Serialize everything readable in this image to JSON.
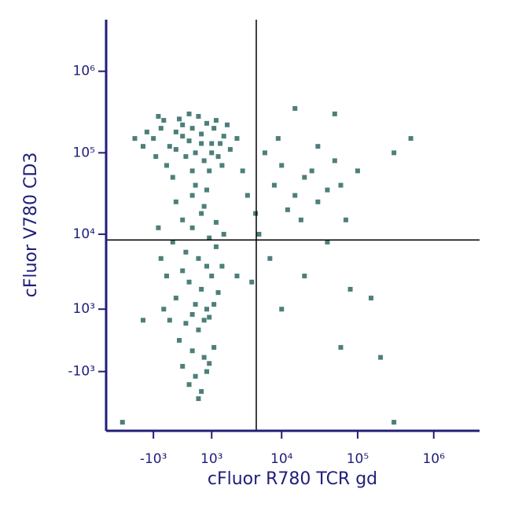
{
  "chart_data": {
    "type": "scatter",
    "xlabel": "cFluor R780 TCR gd",
    "ylabel": "cFluor V780 CD3",
    "xscale": "asinh",
    "xscale_width": 1000,
    "yscale": "asinh",
    "yscale_width": 1000,
    "xlim": [
      -5000,
      4000000
    ],
    "ylim": [
      -6400,
      4300000
    ],
    "xticks": [
      {
        "value": -1000,
        "label": "-10³"
      },
      {
        "value": 1000,
        "label": "10³"
      },
      {
        "value": 10000,
        "label": "10⁴"
      },
      {
        "value": 100000,
        "label": "10⁵"
      },
      {
        "value": 1000000,
        "label": "10⁶"
      }
    ],
    "yticks": [
      {
        "value": -1000,
        "label": "-10³"
      },
      {
        "value": 1000,
        "label": "10³"
      },
      {
        "value": 10000,
        "label": "10⁴"
      },
      {
        "value": 100000,
        "label": "10⁵"
      },
      {
        "value": 1000000,
        "label": "10⁶"
      }
    ],
    "gates": {
      "x": 4600,
      "y": 8500
    },
    "axis_color": "#1f1f7a",
    "series": [
      {
        "color": "#4d7f7a",
        "x": [
          -1000,
          -700,
          -400,
          -200,
          0,
          200,
          400,
          600,
          800,
          1000,
          1300,
          1600,
          2000,
          -900,
          -500,
          -100,
          300,
          700,
          1100,
          1500,
          2500,
          -600,
          100,
          500,
          900,
          1200,
          -300,
          400,
          800,
          1800,
          -1300,
          -1500,
          200,
          600,
          1000,
          0,
          -200,
          1400,
          300,
          -800,
          0,
          300,
          600,
          900,
          -300,
          100,
          500,
          800,
          1200,
          -500,
          200,
          600,
          1000,
          -200,
          400,
          800,
          1300,
          -400,
          100,
          500,
          900,
          -100,
          300,
          700,
          1100,
          0,
          400,
          800,
          200,
          600,
          500,
          -600,
          -700,
          1500,
          1600,
          -200,
          700,
          1200,
          300,
          -800,
          0,
          700,
          300,
          900,
          1100,
          8000,
          15000,
          20000,
          12000,
          30000,
          25000,
          40000,
          10000,
          50000,
          18000,
          60000,
          6000,
          9000,
          30000,
          5000,
          70000,
          100000,
          300000,
          40000,
          7000,
          20000,
          80000,
          150000,
          50000,
          15000,
          500000,
          4000,
          10000,
          60000,
          200000,
          300000,
          3000,
          3500,
          4500,
          2500,
          -2000,
          -3000,
          -1500
        ],
        "values": [
          150000,
          200000,
          120000,
          180000,
          220000,
          140000,
          100000,
          170000,
          230000,
          130000,
          90000,
          160000,
          110000,
          90000,
          70000,
          260000,
          60000,
          80000,
          200000,
          70000,
          150000,
          250000,
          90000,
          280000,
          60000,
          250000,
          50000,
          40000,
          35000,
          220000,
          180000,
          120000,
          300000,
          130000,
          100000,
          160000,
          110000,
          130000,
          200000,
          280000,
          15000,
          12000,
          18000,
          9000,
          8000,
          6000,
          5000,
          4000,
          7000,
          3000,
          2500,
          2000,
          3000,
          1500,
          1200,
          1000,
          1800,
          600,
          500,
          300,
          700,
          0,
          -300,
          -500,
          -200,
          -800,
          -1200,
          -1000,
          -1600,
          -2000,
          -2500,
          1000,
          5000,
          4000,
          10000,
          25000,
          22000,
          14000,
          30000,
          12000,
          3500,
          600,
          800,
          -700,
          1200,
          40000,
          30000,
          50000,
          20000,
          25000,
          60000,
          35000,
          70000,
          80000,
          15000,
          40000,
          100000,
          150000,
          120000,
          10000,
          15000,
          60000,
          100000,
          8000,
          5000,
          3000,
          2000,
          1500,
          300000,
          350000,
          150000,
          2500,
          1000,
          -200,
          -500,
          -5000,
          60000,
          30000,
          18000,
          3000,
          150000,
          -5000,
          600
        ]
      }
    ]
  }
}
